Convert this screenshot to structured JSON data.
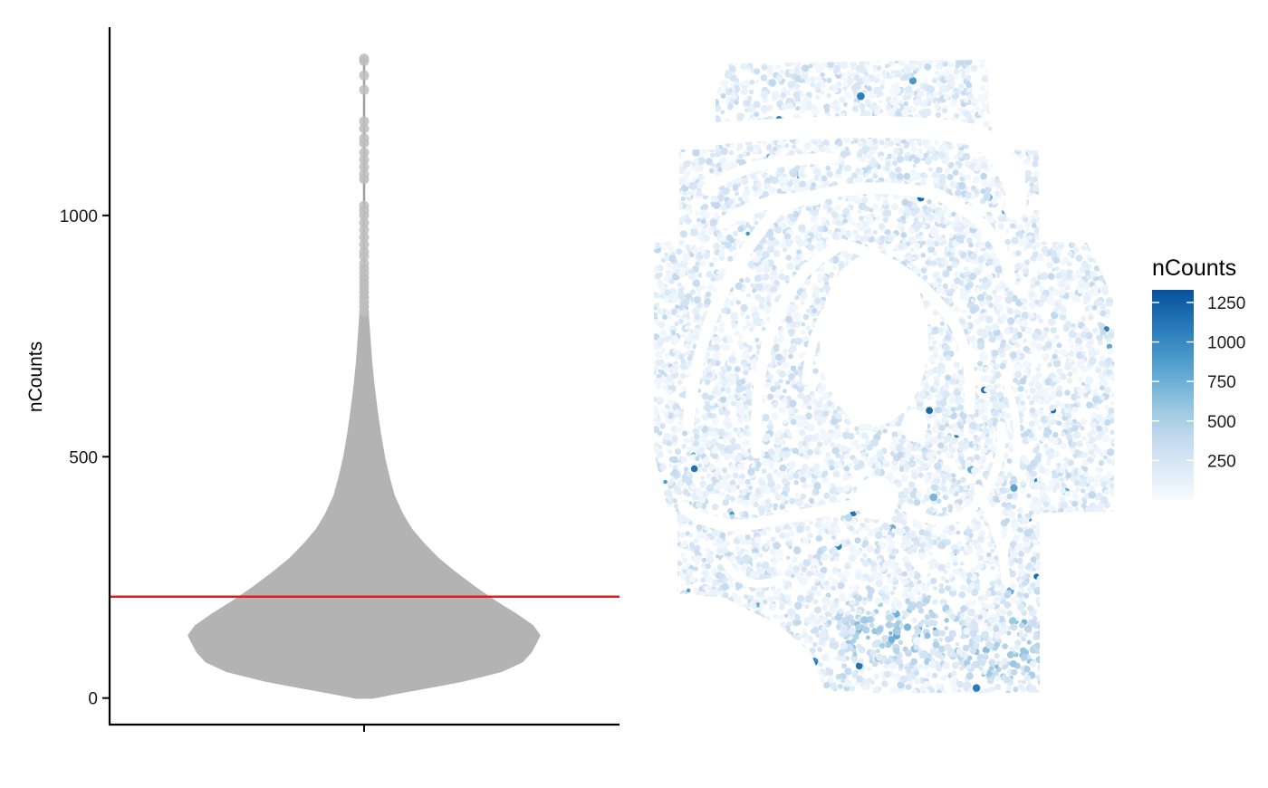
{
  "chart_data": [
    {
      "type": "violin",
      "ylabel": "nCounts",
      "xlabel": "",
      "ylim": [
        -55,
        1390
      ],
      "yticks": [
        0,
        500,
        1000
      ],
      "threshold_line": {
        "value": 210,
        "color": "#e41a1c"
      },
      "fill_color": "#b3b3b3",
      "point_color": "#bdbdbd",
      "density_profile": [
        [
          0,
          0.05
        ],
        [
          8,
          0.16
        ],
        [
          20,
          0.34
        ],
        [
          35,
          0.56
        ],
        [
          55,
          0.78
        ],
        [
          75,
          0.9
        ],
        [
          95,
          0.95
        ],
        [
          115,
          0.98
        ],
        [
          130,
          1.0
        ],
        [
          150,
          0.96
        ],
        [
          175,
          0.86
        ],
        [
          200,
          0.75
        ],
        [
          230,
          0.63
        ],
        [
          260,
          0.52
        ],
        [
          290,
          0.42
        ],
        [
          320,
          0.34
        ],
        [
          350,
          0.27
        ],
        [
          380,
          0.22
        ],
        [
          420,
          0.17
        ],
        [
          460,
          0.14
        ],
        [
          500,
          0.115
        ],
        [
          550,
          0.092
        ],
        [
          600,
          0.072
        ],
        [
          650,
          0.055
        ],
        [
          700,
          0.042
        ],
        [
          750,
          0.032
        ],
        [
          800,
          0.022
        ],
        [
          850,
          0.015
        ],
        [
          880,
          0.012
        ],
        [
          900,
          0.0
        ]
      ],
      "outliers": [
        1325,
        1320,
        1290,
        1260,
        1195,
        1180,
        1160,
        1150,
        1130,
        1115,
        1100,
        1085,
        1075,
        1020,
        1010,
        1000,
        985,
        970,
        955,
        940,
        925,
        915,
        900,
        890,
        880,
        870,
        860,
        850,
        840,
        830,
        820,
        810,
        800
      ],
      "max_value": 1330
    },
    {
      "type": "scatter",
      "color_variable": "nCounts",
      "legend": {
        "title": "nCounts",
        "ticks": [
          250,
          500,
          750,
          1000,
          1250
        ],
        "range": [
          0,
          1330
        ],
        "colors": [
          "#f7fbff",
          "#deebf7",
          "#c6dbef",
          "#9ecae1",
          "#6baed6",
          "#4292c6",
          "#2171b5",
          "#08519c"
        ]
      }
    }
  ]
}
